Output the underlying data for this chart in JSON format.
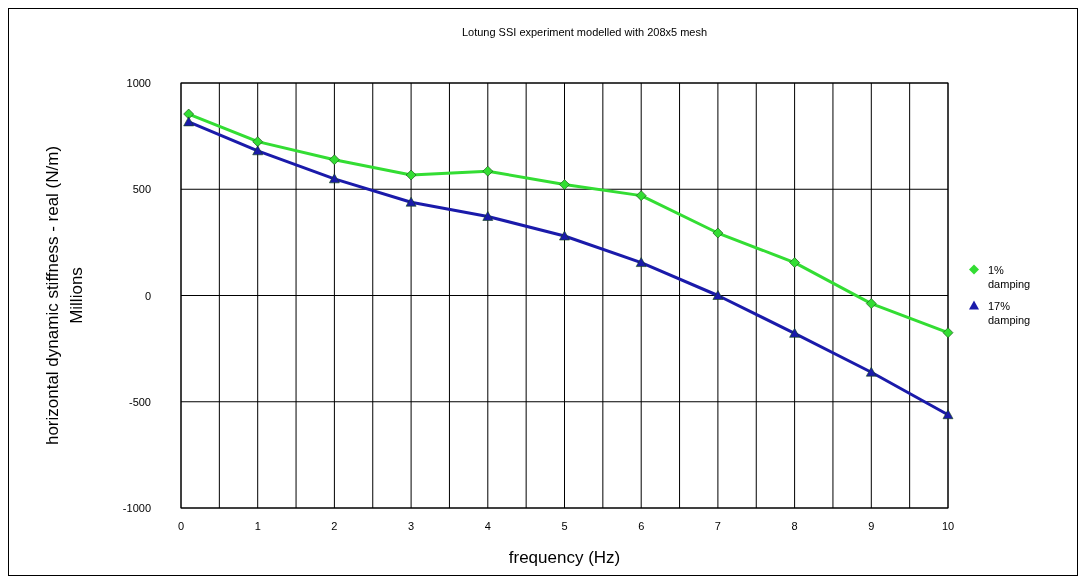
{
  "chart_data": {
    "type": "line",
    "title": "Lotung SSI experiment modelled with 208x5 mesh",
    "xlabel": "frequency (Hz)",
    "ylabel": "horizontal dynamic stiffness - real (N/m)\nMillions",
    "x": [
      0.1,
      1,
      2,
      3,
      4,
      5,
      6,
      7,
      8,
      9,
      10
    ],
    "series": [
      {
        "name": "1% damping",
        "color": "#33dd33",
        "marker": "diamond",
        "values": [
          854,
          724,
          639,
          567,
          585,
          522,
          470,
          294,
          155,
          -38,
          -175
        ]
      },
      {
        "name": "17% damping",
        "color": "#1a1aaa",
        "marker": "triangle",
        "values": [
          817,
          681,
          549,
          439,
          372,
          280,
          155,
          0,
          -178,
          -361,
          -561
        ]
      }
    ],
    "xlim": [
      0,
      10
    ],
    "xticks": [
      0,
      {
        "value": 0.5,
        "label": null
      },
      1,
      {
        "value": 1.5,
        "label": null
      },
      2,
      {
        "value": 2.5,
        "label": null
      },
      3,
      {
        "value": 3.5,
        "label": null
      },
      4,
      {
        "value": 4.5,
        "label": null
      },
      5,
      {
        "value": 5.5,
        "label": null
      },
      6,
      {
        "value": 6.5,
        "label": null
      },
      7,
      {
        "value": 7.5,
        "label": null
      },
      8,
      {
        "value": 8.5,
        "label": null
      },
      9,
      {
        "value": 9.5,
        "label": null
      },
      10
    ],
    "ylim": [
      -1000,
      1000
    ],
    "yticks": [
      -1000,
      -500,
      0,
      500,
      1000
    ],
    "grid": true,
    "legend": "right"
  }
}
